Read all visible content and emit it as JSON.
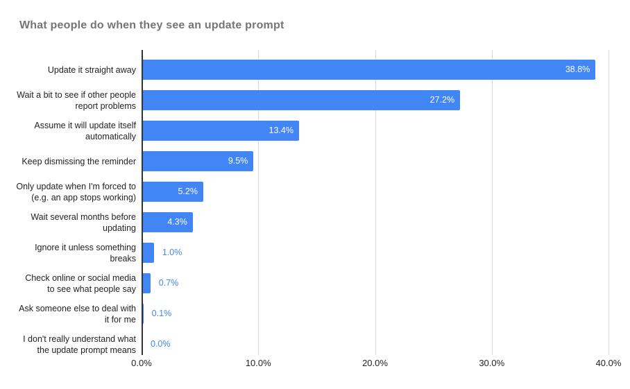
{
  "chart_data": {
    "type": "bar",
    "orientation": "horizontal",
    "title": "What people do when they see an update prompt",
    "categories": [
      "Update it straight away",
      "Wait a bit to see if other people report problems",
      "Assume it will update itself automatically",
      "Keep dismissing the reminder",
      "Only update when I'm forced to (e.g. an app stops working)",
      "Wait several months before updating",
      "Ignore it unless something breaks",
      "Check online or social media to see what people say",
      "Ask someone else to deal with it for me",
      "I don't really understand what the update prompt means"
    ],
    "category_lines": [
      [
        "Update it straight away"
      ],
      [
        "Wait a bit to see if other people",
        "report problems"
      ],
      [
        "Assume it will update itself",
        "automatically"
      ],
      [
        "Keep dismissing the reminder"
      ],
      [
        "Only update when I'm forced to",
        "(e.g. an app stops working)"
      ],
      [
        "Wait several months before",
        "updating"
      ],
      [
        "Ignore it unless something",
        "breaks"
      ],
      [
        "Check online or social media",
        "to see what people say"
      ],
      [
        "Ask someone else to deal with",
        "it for me"
      ],
      [
        "I don't really understand what",
        "the update prompt means"
      ]
    ],
    "values": [
      38.8,
      27.2,
      13.4,
      9.5,
      5.2,
      4.3,
      1.0,
      0.7,
      0.1,
      0.0
    ],
    "value_labels": [
      "38.8%",
      "27.2%",
      "13.4%",
      "9.5%",
      "5.2%",
      "4.3%",
      "1.0%",
      "0.7%",
      "0.1%",
      "0.0%"
    ],
    "x_tick_values": [
      0,
      10,
      20,
      30,
      40
    ],
    "x_tick_labels": [
      "0.0%",
      "10.0%",
      "20.0%",
      "30.0%",
      "40.0%"
    ],
    "xlim": [
      0,
      40
    ],
    "xlabel": "",
    "ylabel": "",
    "grid": "vertical",
    "legend": "none",
    "colors": {
      "bar": "#4285f4",
      "value_label_inside": "#ffffff",
      "value_label_outside": "#4285f4",
      "title": "#757575",
      "category_label": "#222222",
      "axis_tick_label": "#222222",
      "gridline": "#d9d9d9",
      "axis_baseline": "#333333",
      "background": "#ffffff"
    }
  }
}
